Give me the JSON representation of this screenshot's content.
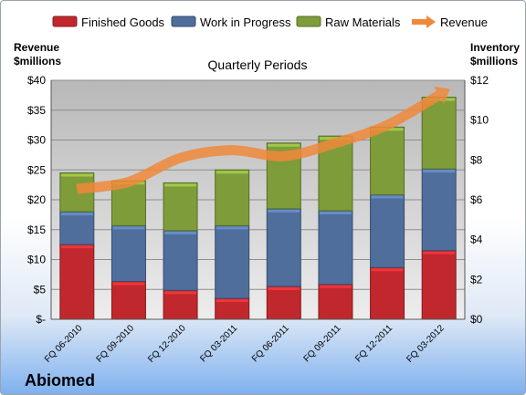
{
  "chart_data": {
    "type": "bar",
    "title": "Quarterly Periods",
    "company": "Abiomed",
    "categories": [
      "FQ 06-2010",
      "FQ 09-2010",
      "FQ 12-2010",
      "FQ 03-2011",
      "FQ 06-2011",
      "FQ 09-2011",
      "FQ 12-2011",
      "FQ 03-2012"
    ],
    "ylabel_left": [
      "Revenue",
      "$millions"
    ],
    "ylabel_right": [
      "Inventory",
      "$millions"
    ],
    "ylim_left": [
      0,
      40
    ],
    "ylim_right": [
      0,
      12
    ],
    "left_ticks": [
      "$-",
      "$5",
      "$10",
      "$15",
      "$20",
      "$25",
      "$30",
      "$35",
      "$40"
    ],
    "right_ticks": [
      "$0",
      "$2",
      "$4",
      "$6",
      "$8",
      "$10",
      "$12"
    ],
    "grid": true,
    "legend_position": "top",
    "stacked_axis": "right",
    "series": [
      {
        "name": "Finished Goods",
        "color": "#c0282d",
        "values": [
          3.75,
          1.9,
          1.45,
          1.05,
          1.65,
          1.75,
          2.6,
          3.45
        ]
      },
      {
        "name": "Work in Progress",
        "color": "#4f6e9c",
        "values": [
          1.65,
          2.8,
          3.0,
          3.65,
          3.9,
          3.7,
          3.65,
          4.1
        ]
      },
      {
        "name": "Raw Materials",
        "color": "#7e9c3a",
        "values": [
          1.95,
          2.25,
          2.4,
          2.8,
          3.3,
          3.75,
          3.4,
          3.6
        ]
      }
    ],
    "line": {
      "name": "Revenue",
      "color": "#f0883a",
      "axis": "left",
      "values": [
        21.8,
        23.0,
        27.0,
        28.3,
        27.3,
        29.5,
        32.5,
        37.5
      ]
    }
  }
}
